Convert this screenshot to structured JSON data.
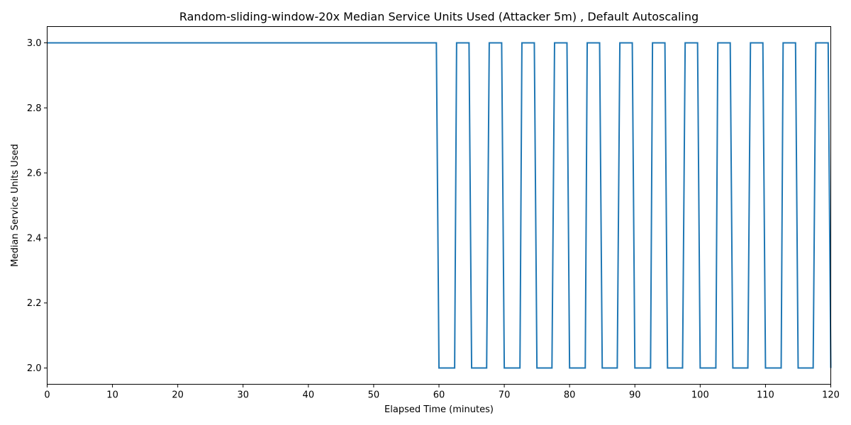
{
  "chart_data": {
    "type": "line",
    "title": "Random-sliding-window-20x Median Service Units Used (Attacker 5m) , Default Autoscaling",
    "xlabel": "Elapsed Time (minutes)",
    "ylabel": "Median Service Units Used",
    "xlim": [
      0,
      120
    ],
    "ylim": [
      1.95,
      3.05
    ],
    "x_ticks": [
      0,
      10,
      20,
      30,
      40,
      50,
      60,
      70,
      80,
      90,
      100,
      110,
      120
    ],
    "x_tick_labels": [
      "0",
      "10",
      "20",
      "30",
      "40",
      "50",
      "60",
      "70",
      "80",
      "90",
      "100",
      "110",
      "120"
    ],
    "y_ticks": [
      2.0,
      2.2,
      2.4,
      2.6,
      2.8,
      3.0
    ],
    "y_tick_labels": [
      "2.0",
      "2.2",
      "2.4",
      "2.6",
      "2.8",
      "3.0"
    ],
    "grid": false,
    "legend": "none",
    "series": [
      {
        "color": "#1f77b4",
        "x": [
          0,
          59.6,
          60,
          62.4,
          62.7,
          64.6,
          65,
          67.3,
          67.7,
          69.6,
          70,
          72.4,
          72.7,
          74.6,
          75,
          77.3,
          77.7,
          79.6,
          80,
          82.4,
          82.7,
          84.6,
          85,
          87.3,
          87.7,
          89.6,
          90,
          92.4,
          92.7,
          94.6,
          95,
          97.3,
          97.7,
          99.6,
          100,
          102.4,
          102.7,
          104.6,
          105,
          107.3,
          107.7,
          109.6,
          110,
          112.4,
          112.7,
          114.6,
          115,
          117.3,
          117.7,
          119.6,
          120
        ],
        "values": [
          3,
          3,
          2,
          2,
          3,
          3,
          2,
          2,
          3,
          3,
          2,
          2,
          3,
          3,
          2,
          2,
          3,
          3,
          2,
          2,
          3,
          3,
          2,
          2,
          3,
          3,
          2,
          2,
          3,
          3,
          2,
          2,
          3,
          3,
          2,
          2,
          3,
          3,
          2,
          2,
          3,
          3,
          2,
          2,
          3,
          3,
          2,
          2,
          3,
          3,
          2
        ]
      }
    ]
  }
}
